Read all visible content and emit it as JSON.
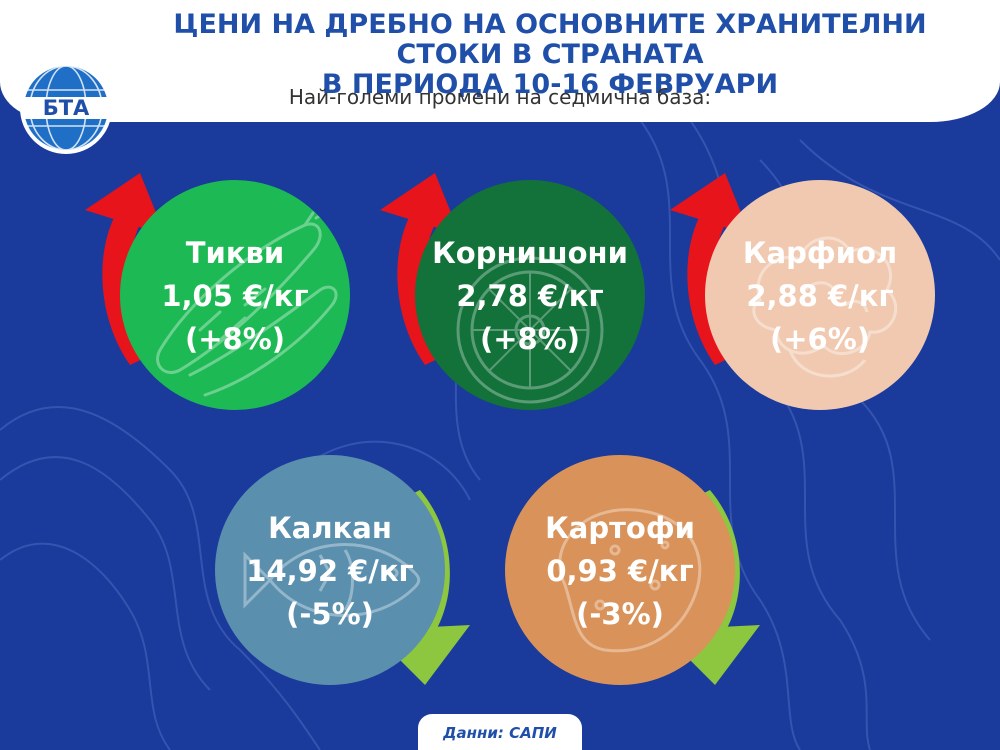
{
  "header": {
    "title_line1": "ЦЕНИ НА ДРЕБНО НА ОСНОВНИТЕ ХРАНИТЕЛНИ СТОКИ В СТРАНАТА",
    "title_line2": "В ПЕРИОДА 10-16 ФЕВРУАРИ",
    "subtitle": "Най-големи промени на седмична база:",
    "logo_text": "БТА"
  },
  "items": [
    {
      "name": "Тикви",
      "price": "1,05 €/кг",
      "change": "(+8%)",
      "direction": "up",
      "color": "#1db954",
      "icon": "zucchini-icon"
    },
    {
      "name": "Корнишони",
      "price": "2,78 €/кг",
      "change": "(+8%)",
      "direction": "up",
      "color": "#13713a",
      "icon": "cucumber-slice-icon"
    },
    {
      "name": "Карфиол",
      "price": "2,88 €/кг",
      "change": "(+6%)",
      "direction": "up",
      "color": "#f0c9b0",
      "icon": "cauliflower-icon"
    },
    {
      "name": "Калкан",
      "price": "14,92 €/кг",
      "change": "(-5%)",
      "direction": "down",
      "color": "#5a8fae",
      "icon": "fish-icon"
    },
    {
      "name": "Картофи",
      "price": "0,93 €/кг",
      "change": "(-3%)",
      "direction": "down",
      "color": "#d9935a",
      "icon": "potato-icon"
    }
  ],
  "colors": {
    "background": "#1a3a9c",
    "title": "#1f4fa8",
    "arrow_up": "#e8141c",
    "arrow_down": "#8dc63f"
  },
  "footer": {
    "source": "Данни: САПИ"
  }
}
